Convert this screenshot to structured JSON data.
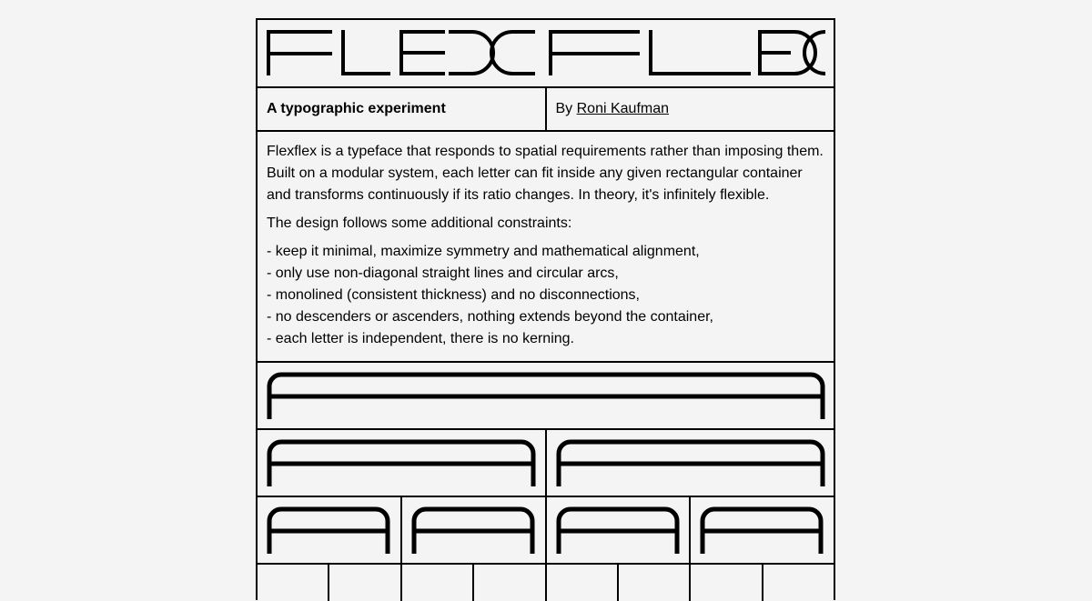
{
  "logo": {
    "text": "FLEXFLEX"
  },
  "meta": {
    "tagline": "A typographic experiment",
    "by_prefix": "By ",
    "author": "Roni Kaufman"
  },
  "description": {
    "paragraph1": "Flexflex is a typeface that responds to spatial requirements rather than imposing them. Built on a modular system, each letter can fit inside any given rectangular container and transforms continuously if its ratio changes. In theory, it's infinitely flexible.",
    "paragraph2": "The design follows some additional constraints:",
    "constraints": [
      "- keep it minimal, maximize symmetry and mathematical alignment,",
      "- only use non-diagonal straight lines and circular arcs,",
      "- monolined (consistent thickness) and no disconnections,",
      "- no descenders or ascenders, nothing extends beyond the container,",
      "- each letter is independent, there is no kerning."
    ]
  },
  "demo": {
    "glyph": "A",
    "rows": [
      1,
      2,
      4,
      8
    ]
  }
}
